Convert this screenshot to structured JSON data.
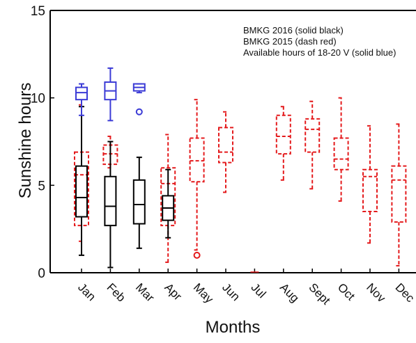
{
  "chart_data": {
    "type": "box",
    "xlabel": "Months",
    "ylabel": "Sunshine hours",
    "ylim": [
      0,
      15
    ],
    "yticks": [
      "0",
      "5",
      "10",
      "15"
    ],
    "categories": [
      "Jan",
      "Feb",
      "Mar",
      "Apr",
      "May",
      "Jun",
      "Jul",
      "Aug",
      "Sept",
      "Oct",
      "Nov",
      "Dec"
    ],
    "legend": {
      "position": "top-right",
      "entries": [
        "BMKG 2016 (solid black)",
        "BMKG 2015 (dash red)",
        "Available hours of 18-20 V (solid blue)"
      ]
    },
    "series": [
      {
        "name": "BMKG 2016",
        "color": "#000000",
        "style": "solid",
        "boxes": [
          {
            "category": "Jan",
            "min": 1.0,
            "q1": 3.2,
            "median": 4.3,
            "q3": 6.1,
            "max": 9.5
          },
          {
            "category": "Feb",
            "min": 0.3,
            "q1": 2.7,
            "median": 3.8,
            "q3": 5.5,
            "max": 7.5
          },
          {
            "category": "Mar",
            "min": 1.4,
            "q1": 2.8,
            "median": 3.9,
            "q3": 5.3,
            "max": 6.6
          },
          {
            "category": "Apr",
            "min": 2.0,
            "q1": 3.0,
            "median": 3.7,
            "q3": 4.4,
            "max": 5.9
          }
        ]
      },
      {
        "name": "BMKG 2015",
        "color": "#e41a1c",
        "style": "dash",
        "boxes": [
          {
            "category": "Jan",
            "min": 1.8,
            "q1": 2.7,
            "median": 5.6,
            "q3": 6.9,
            "max": 9.6
          },
          {
            "category": "Feb",
            "min": 6.0,
            "q1": 6.2,
            "median": 6.8,
            "q3": 7.3,
            "max": 7.8
          },
          {
            "category": "Apr",
            "min": 0.6,
            "q1": 2.7,
            "median": 5.1,
            "q3": 6.0,
            "max": 7.9
          },
          {
            "category": "May",
            "min": 1.3,
            "q1": 5.2,
            "median": 6.4,
            "q3": 7.7,
            "max": 9.9,
            "outliers": [
              1.0
            ]
          },
          {
            "category": "Jun",
            "min": 4.6,
            "q1": 6.3,
            "median": 6.9,
            "q3": 8.3,
            "max": 9.2
          },
          {
            "category": "Aug",
            "min": 5.3,
            "q1": 6.8,
            "median": 7.8,
            "q3": 9.0,
            "max": 9.5
          },
          {
            "category": "Sept",
            "min": 4.8,
            "q1": 6.9,
            "median": 8.2,
            "q3": 8.8,
            "max": 9.8
          },
          {
            "category": "Oct",
            "min": 4.1,
            "q1": 5.9,
            "median": 6.5,
            "q3": 7.7,
            "max": 10.0
          },
          {
            "category": "Nov",
            "min": 1.7,
            "q1": 3.5,
            "median": 5.5,
            "q3": 5.9,
            "max": 8.4
          },
          {
            "category": "Dec",
            "min": 0.4,
            "q1": 2.9,
            "median": 5.3,
            "q3": 6.1,
            "max": 8.5
          }
        ]
      },
      {
        "name": "Available hours of 18-20 V",
        "color": "#3b3bd6",
        "style": "solid",
        "boxes": [
          {
            "category": "Jan",
            "min": 9.0,
            "q1": 9.9,
            "median": 10.3,
            "q3": 10.6,
            "max": 10.8
          },
          {
            "category": "Feb",
            "min": 8.7,
            "q1": 9.9,
            "median": 10.4,
            "q3": 10.9,
            "max": 11.7
          },
          {
            "category": "Mar",
            "min": 10.3,
            "q1": 10.4,
            "median": 10.6,
            "q3": 10.8,
            "max": 10.8,
            "outliers": [
              9.2
            ]
          }
        ]
      }
    ]
  }
}
